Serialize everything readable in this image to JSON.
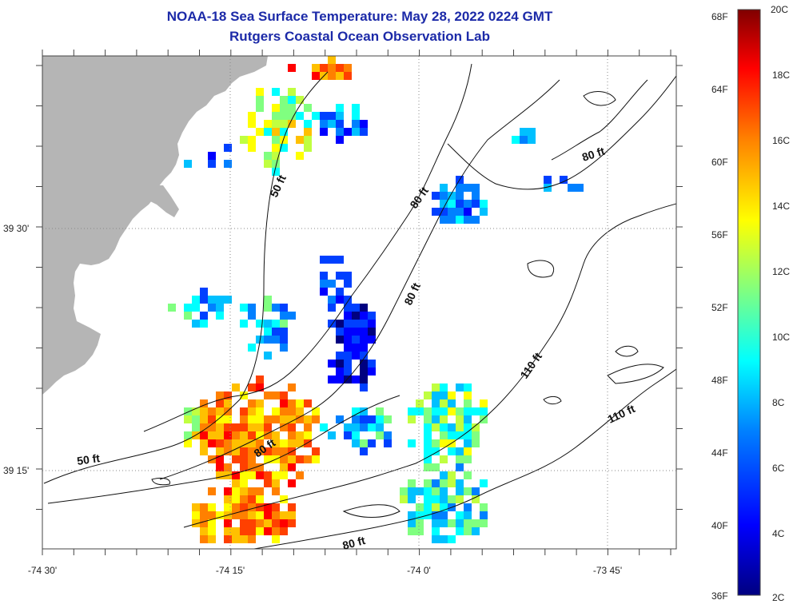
{
  "title": {
    "line1": "NOAA-18 Sea Surface Temperature:  May 28, 2022 0224 GMT",
    "line2": "Rutgers Coastal Ocean Observation Lab"
  },
  "axes": {
    "x_ticks": [
      {
        "label": "-74 30'",
        "lon": -74.5
      },
      {
        "label": "-74 15'",
        "lon": -74.25
      },
      {
        "label": "-74 0'",
        "lon": -74.0
      },
      {
        "label": "-73 45'",
        "lon": -73.75
      }
    ],
    "y_ticks": [
      {
        "label": "39 30'",
        "lat": 39.5
      },
      {
        "label": "39 15'",
        "lat": 39.25
      }
    ]
  },
  "contour_labels": [
    {
      "text": "50 ft"
    },
    {
      "text": "80 ft"
    },
    {
      "text": "80 ft"
    },
    {
      "text": "80 ft"
    },
    {
      "text": "80 ft"
    },
    {
      "text": "110 ft"
    },
    {
      "text": "110 ft"
    },
    {
      "text": "50 ft"
    },
    {
      "text": "80 ft"
    }
  ],
  "colorbar": {
    "fahrenheit": [
      "68F",
      "64F",
      "60F",
      "56F",
      "52F",
      "48F",
      "44F",
      "40F",
      "36F"
    ],
    "celsius": [
      "20C",
      "18C",
      "16C",
      "14C",
      "12C",
      "10C",
      "8C",
      "6C",
      "4C",
      "2C"
    ],
    "colors": [
      "#800000",
      "#ff0000",
      "#ff8000",
      "#ffff00",
      "#80ff80",
      "#00ffff",
      "#0080ff",
      "#0000ff",
      "#000080"
    ]
  },
  "colors": {
    "land": "#b5b5b5",
    "title": "#1c2aa8",
    "grid": "#888888"
  }
}
